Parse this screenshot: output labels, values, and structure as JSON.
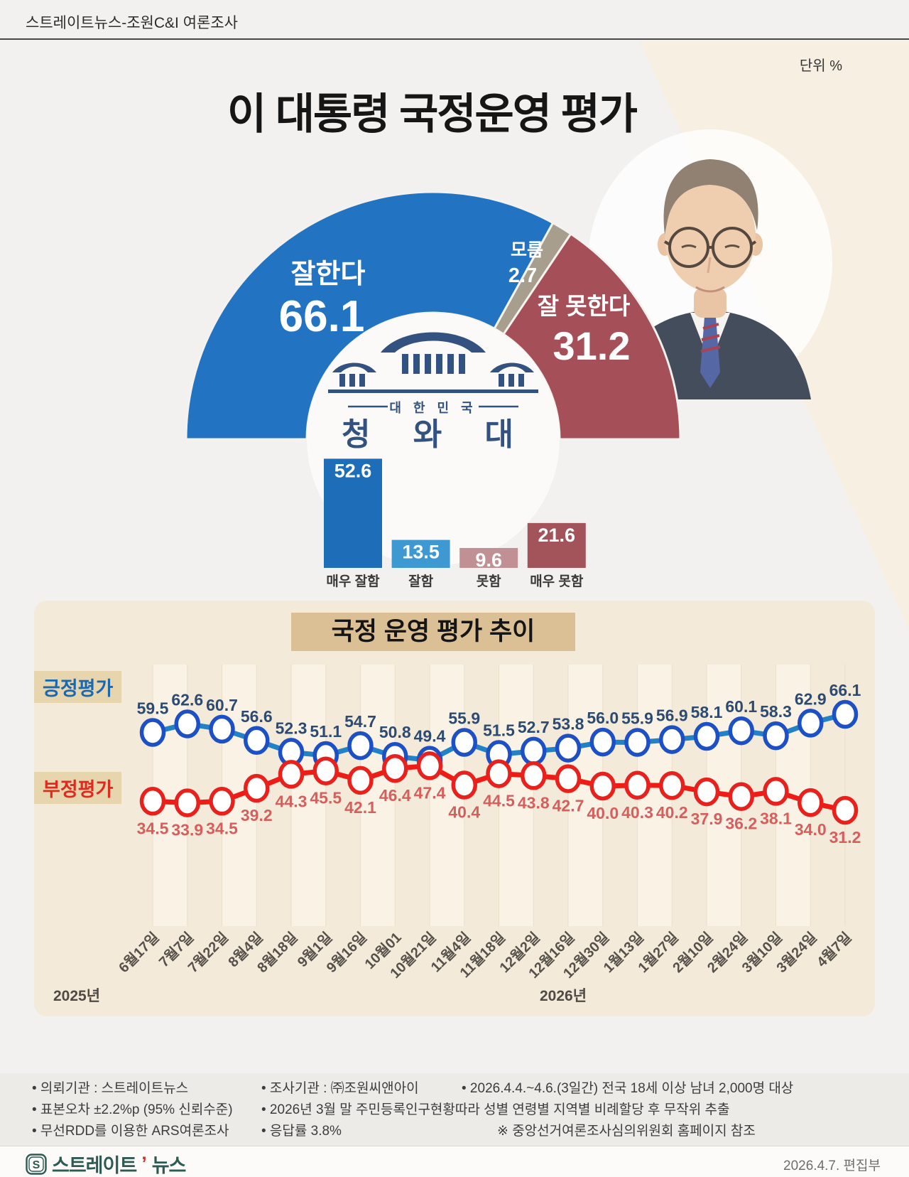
{
  "header": {
    "source": "스트레이트뉴스-조원C&I 여론조사",
    "unit": "단위 %"
  },
  "main_title": "이 대통령 국정운영 평가",
  "chart_data": [
    {
      "type": "pie",
      "variant": "half-donut",
      "title": "이 대통령 국정운영 평가",
      "unit": "%",
      "slices": [
        {
          "label": "잘한다",
          "value": 66.1,
          "color": "#2273c1"
        },
        {
          "label": "모름",
          "value": 2.7,
          "color": "#a79e8e"
        },
        {
          "label": "잘 못한다",
          "value": 31.2,
          "color": "#a54f59"
        }
      ],
      "emblem": {
        "country": "대 한 민 국",
        "name": "청 와 대",
        "color": "#33527f"
      }
    },
    {
      "type": "bar",
      "categories": [
        "매우 잘함",
        "잘함",
        "못함",
        "매우 못함"
      ],
      "values": [
        52.6,
        13.5,
        9.6,
        21.6
      ],
      "colors": [
        "#1d6db8",
        "#3e99d3",
        "#c09095",
        "#a3535a"
      ],
      "ylim": [
        0,
        60
      ]
    },
    {
      "type": "line",
      "title": "국정 운영 평가 추이",
      "categories": [
        "6월17일",
        "7월7일",
        "7월22일",
        "8월4일",
        "8월18일",
        "9월1일",
        "9월16일",
        "10월01",
        "10월21일",
        "11월4일",
        "11월18일",
        "12월2일",
        "12월16일",
        "12월30일",
        "1월13일",
        "1월27일",
        "2월10일",
        "2월24일",
        "3월10일",
        "3월24일",
        "4월7일"
      ],
      "series": [
        {
          "name": "긍정평가",
          "color": "#2382c6",
          "marker_color": "#1e50c5",
          "label_color": "#2d4a70",
          "values": [
            59.5,
            62.6,
            60.7,
            56.6,
            52.3,
            51.1,
            54.7,
            50.8,
            49.4,
            55.9,
            51.5,
            52.7,
            53.8,
            56.0,
            55.9,
            56.9,
            58.1,
            60.1,
            58.3,
            62.9,
            66.1
          ]
        },
        {
          "name": "부정평가",
          "color": "#ef1c16",
          "marker_color": "#e8211c",
          "label_color": "#d45f5d",
          "values": [
            34.5,
            33.9,
            34.5,
            39.2,
            44.3,
            45.5,
            42.1,
            46.4,
            47.4,
            40.4,
            44.5,
            43.8,
            42.7,
            40.0,
            40.3,
            40.2,
            37.9,
            36.2,
            38.1,
            34.0,
            31.2
          ]
        }
      ],
      "x_year_labels": [
        {
          "text": "2025년"
        },
        {
          "text": "2026년"
        }
      ],
      "grid": "vertical-bands",
      "legend_position": "left"
    }
  ],
  "footnotes": {
    "rows": [
      [
        "• 의뢰기관 : 스트레이트뉴스",
        "• 조사기관 : ㈜조원씨앤아이",
        "• 2026.4.4.~4.6.(3일간) 전국 18세 이상 남녀 2,000명 대상"
      ],
      [
        "• 표본오차 ±2.2%p (95% 신뢰수준)",
        "• 2026년 3월 말 주민등록인구현황따라 성별 연령별 지역별 비례할당 후 무작위 추출"
      ],
      [
        "• 무선RDD를 이용한 ARS여론조사",
        "• 응답률 3.8%",
        "※ 중앙선거여론조사심의위원회 홈페이지 참조"
      ]
    ]
  },
  "bottom_bar": {
    "brand_icon": "S",
    "brand_text_1": "스트레이트",
    "brand_accent": "’",
    "brand_text_2": "뉴스",
    "edition": "2026.4.7.  편집부"
  }
}
